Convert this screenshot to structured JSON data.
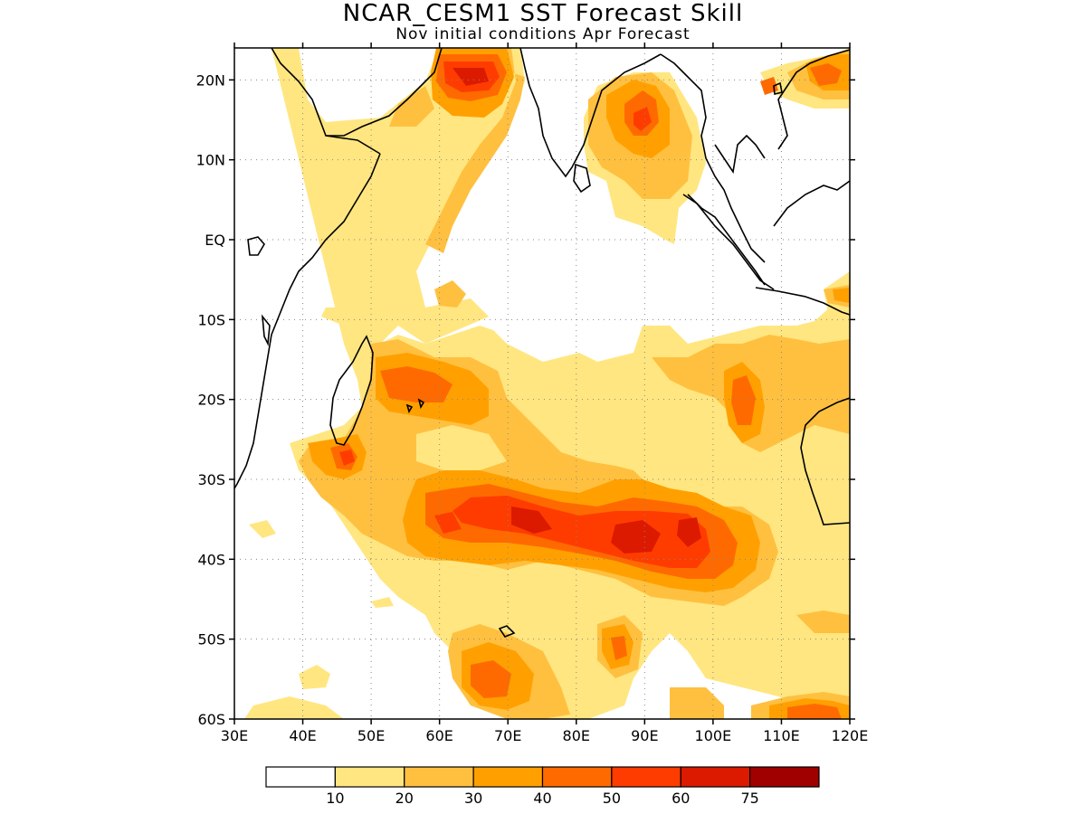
{
  "title": "NCAR_CESM1  SST Forecast Skill",
  "subtitle": "Nov initial conditions   Apr Forecast",
  "map": {
    "lon_range": [
      30,
      120
    ],
    "lat_range": [
      -60,
      24
    ],
    "x_tick_labels": [
      "30E",
      "40E",
      "50E",
      "60E",
      "70E",
      "80E",
      "90E",
      "100E",
      "110E",
      "120E"
    ],
    "x_tick_values": [
      30,
      40,
      50,
      60,
      70,
      80,
      90,
      100,
      110,
      120
    ],
    "y_tick_labels": [
      "60S",
      "50S",
      "40S",
      "30S",
      "20S",
      "10S",
      "EQ",
      "10N",
      "20N"
    ],
    "y_tick_values": [
      -60,
      -50,
      -40,
      -30,
      -20,
      -10,
      0,
      10,
      20
    ],
    "grid": "dotted"
  },
  "legend": {
    "levels": [
      "10",
      "20",
      "30",
      "40",
      "50",
      "60",
      "75"
    ],
    "colors": [
      "#ffffff",
      "#ffe680",
      "#ffc040",
      "#ffa000",
      "#ff6a00",
      "#ff3c00",
      "#dc1a00",
      "#a00000"
    ]
  }
}
